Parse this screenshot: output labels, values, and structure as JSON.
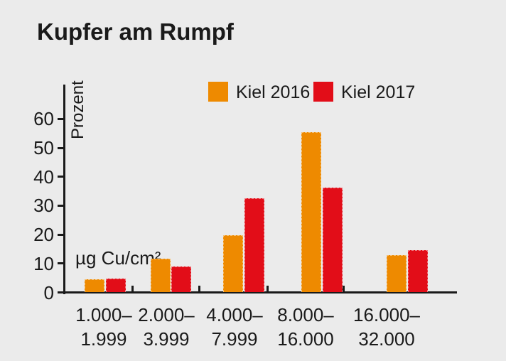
{
  "title": "Kupfer am Rumpf",
  "colors": {
    "background": "#ebebeb",
    "axis": "#1a1a1a",
    "text": "#1a1a1a",
    "kiel_2016": "#ee8a00",
    "kiel_2017": "#e20d18"
  },
  "legend": {
    "items": [
      {
        "label": "Kiel 2016",
        "color": "#ee8a00"
      },
      {
        "label": "Kiel 2017",
        "color": "#e20d18"
      }
    ]
  },
  "chart_data": {
    "type": "bar",
    "title": "Kupfer am Rumpf",
    "ylabel": "Prozent",
    "xlabel": "µg Cu/cm²",
    "ylim": [
      0,
      65
    ],
    "yticks": [
      0,
      10,
      20,
      30,
      40,
      50,
      60
    ],
    "grid": false,
    "legend_position": "top",
    "categories": [
      [
        "1.000–",
        "1.999"
      ],
      [
        "2.000–",
        "3.999"
      ],
      [
        "4.000–",
        "7.999"
      ],
      [
        "8.000–",
        "16.000"
      ],
      [
        "16.000–",
        "32.000"
      ]
    ],
    "series": [
      {
        "name": "Kiel 2016",
        "color": "#ee8a00",
        "values": [
          4.5,
          11.6,
          19.6,
          55.2,
          12.8
        ]
      },
      {
        "name": "Kiel 2017",
        "color": "#e20d18",
        "values": [
          4.6,
          8.9,
          32.5,
          36.2,
          14.4
        ]
      }
    ]
  }
}
